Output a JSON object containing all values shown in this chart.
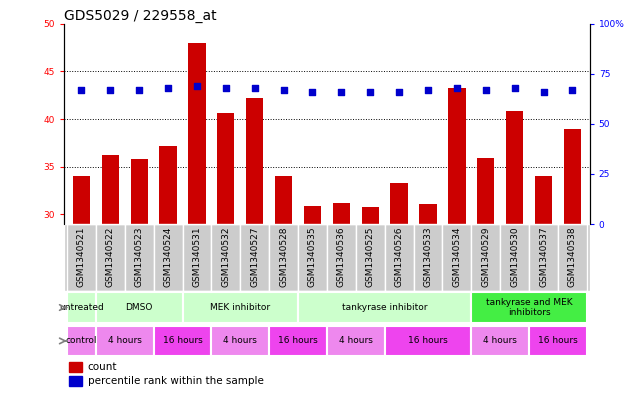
{
  "title": "GDS5029 / 229558_at",
  "samples": [
    "GSM1340521",
    "GSM1340522",
    "GSM1340523",
    "GSM1340524",
    "GSM1340531",
    "GSM1340532",
    "GSM1340527",
    "GSM1340528",
    "GSM1340535",
    "GSM1340536",
    "GSM1340525",
    "GSM1340526",
    "GSM1340533",
    "GSM1340534",
    "GSM1340529",
    "GSM1340530",
    "GSM1340537",
    "GSM1340538"
  ],
  "counts": [
    34.0,
    36.2,
    35.8,
    37.2,
    48.0,
    40.6,
    42.2,
    34.0,
    30.9,
    31.2,
    30.8,
    33.3,
    31.1,
    43.3,
    35.9,
    40.8,
    34.0,
    39.0
  ],
  "percentiles": [
    67,
    67,
    67,
    68,
    69,
    68,
    68,
    67,
    66,
    66,
    66,
    66,
    67,
    68,
    67,
    68,
    66,
    67
  ],
  "ylim_left": [
    29,
    50
  ],
  "ylim_right": [
    0,
    100
  ],
  "yticks_left": [
    30,
    35,
    40,
    45,
    50
  ],
  "yticks_right": [
    0,
    25,
    50,
    75,
    100
  ],
  "ytick_labels_right": [
    "0",
    "25",
    "50",
    "75",
    "100%"
  ],
  "bar_color": "#cc0000",
  "dot_color": "#0000cc",
  "background_color": "#ffffff",
  "ticklabel_bg_color": "#cccccc",
  "title_fontsize": 10,
  "tick_fontsize": 6.5,
  "bar_width": 0.6,
  "proto_groups": [
    {
      "label": "untreated",
      "start": 0,
      "end": 1,
      "color": "#ccffcc"
    },
    {
      "label": "DMSO",
      "start": 1,
      "end": 4,
      "color": "#ccffcc"
    },
    {
      "label": "MEK inhibitor",
      "start": 4,
      "end": 8,
      "color": "#ccffcc"
    },
    {
      "label": "tankyrase inhibitor",
      "start": 8,
      "end": 14,
      "color": "#ccffcc"
    },
    {
      "label": "tankyrase and MEK\ninhibitors",
      "start": 14,
      "end": 18,
      "color": "#44ee44"
    }
  ],
  "time_groups": [
    {
      "label": "control",
      "start": 0,
      "end": 1,
      "color": "#ee88ee"
    },
    {
      "label": "4 hours",
      "start": 1,
      "end": 3,
      "color": "#ee88ee"
    },
    {
      "label": "16 hours",
      "start": 3,
      "end": 5,
      "color": "#ee44ee"
    },
    {
      "label": "4 hours",
      "start": 5,
      "end": 7,
      "color": "#ee88ee"
    },
    {
      "label": "16 hours",
      "start": 7,
      "end": 9,
      "color": "#ee44ee"
    },
    {
      "label": "4 hours",
      "start": 9,
      "end": 11,
      "color": "#ee88ee"
    },
    {
      "label": "16 hours",
      "start": 11,
      "end": 14,
      "color": "#ee44ee"
    },
    {
      "label": "4 hours",
      "start": 14,
      "end": 16,
      "color": "#ee88ee"
    },
    {
      "label": "16 hours",
      "start": 16,
      "end": 18,
      "color": "#ee44ee"
    }
  ]
}
